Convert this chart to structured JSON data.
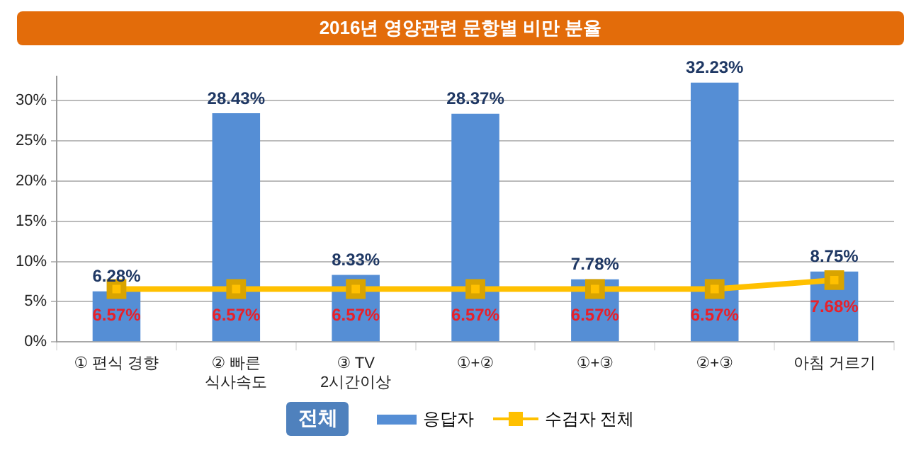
{
  "chart_data": {
    "type": "bar",
    "title": "2016년 영양관련 문항별 비만 분율",
    "legend_title": "전체",
    "categories": [
      "① 편식 경향",
      "② 빠른\n식사속도",
      "③ TV\n2시간이상",
      "①+②",
      "①+③",
      "②+③",
      "아침 거르기"
    ],
    "series": [
      {
        "name": "응답자",
        "color": "#558ed5",
        "values": [
          6.28,
          28.43,
          8.33,
          28.37,
          7.78,
          32.23,
          8.75
        ],
        "value_labels": [
          "6.28%",
          "28.43%",
          "8.33%",
          "28.37%",
          "7.78%",
          "32.23%",
          "8.75%"
        ]
      },
      {
        "name": "수검자 전체",
        "type": "line",
        "color": "#ffc000",
        "marker": "square",
        "values": [
          6.57,
          6.57,
          6.57,
          6.57,
          6.57,
          6.57,
          7.68
        ],
        "value_labels": [
          "6.57%",
          "6.57%",
          "6.57%",
          "6.57%",
          "6.57%",
          "6.57%",
          "7.68%"
        ]
      }
    ],
    "ylim": [
      0,
      33
    ],
    "yticks": [
      {
        "value": 0,
        "label": "0%"
      },
      {
        "value": 5,
        "label": "5%"
      },
      {
        "value": 10,
        "label": "10%"
      },
      {
        "value": 15,
        "label": "15%"
      },
      {
        "value": 20,
        "label": "20%"
      },
      {
        "value": 25,
        "label": "25%"
      },
      {
        "value": 30,
        "label": "30%"
      }
    ],
    "grid": "y",
    "legend": "bottom"
  }
}
